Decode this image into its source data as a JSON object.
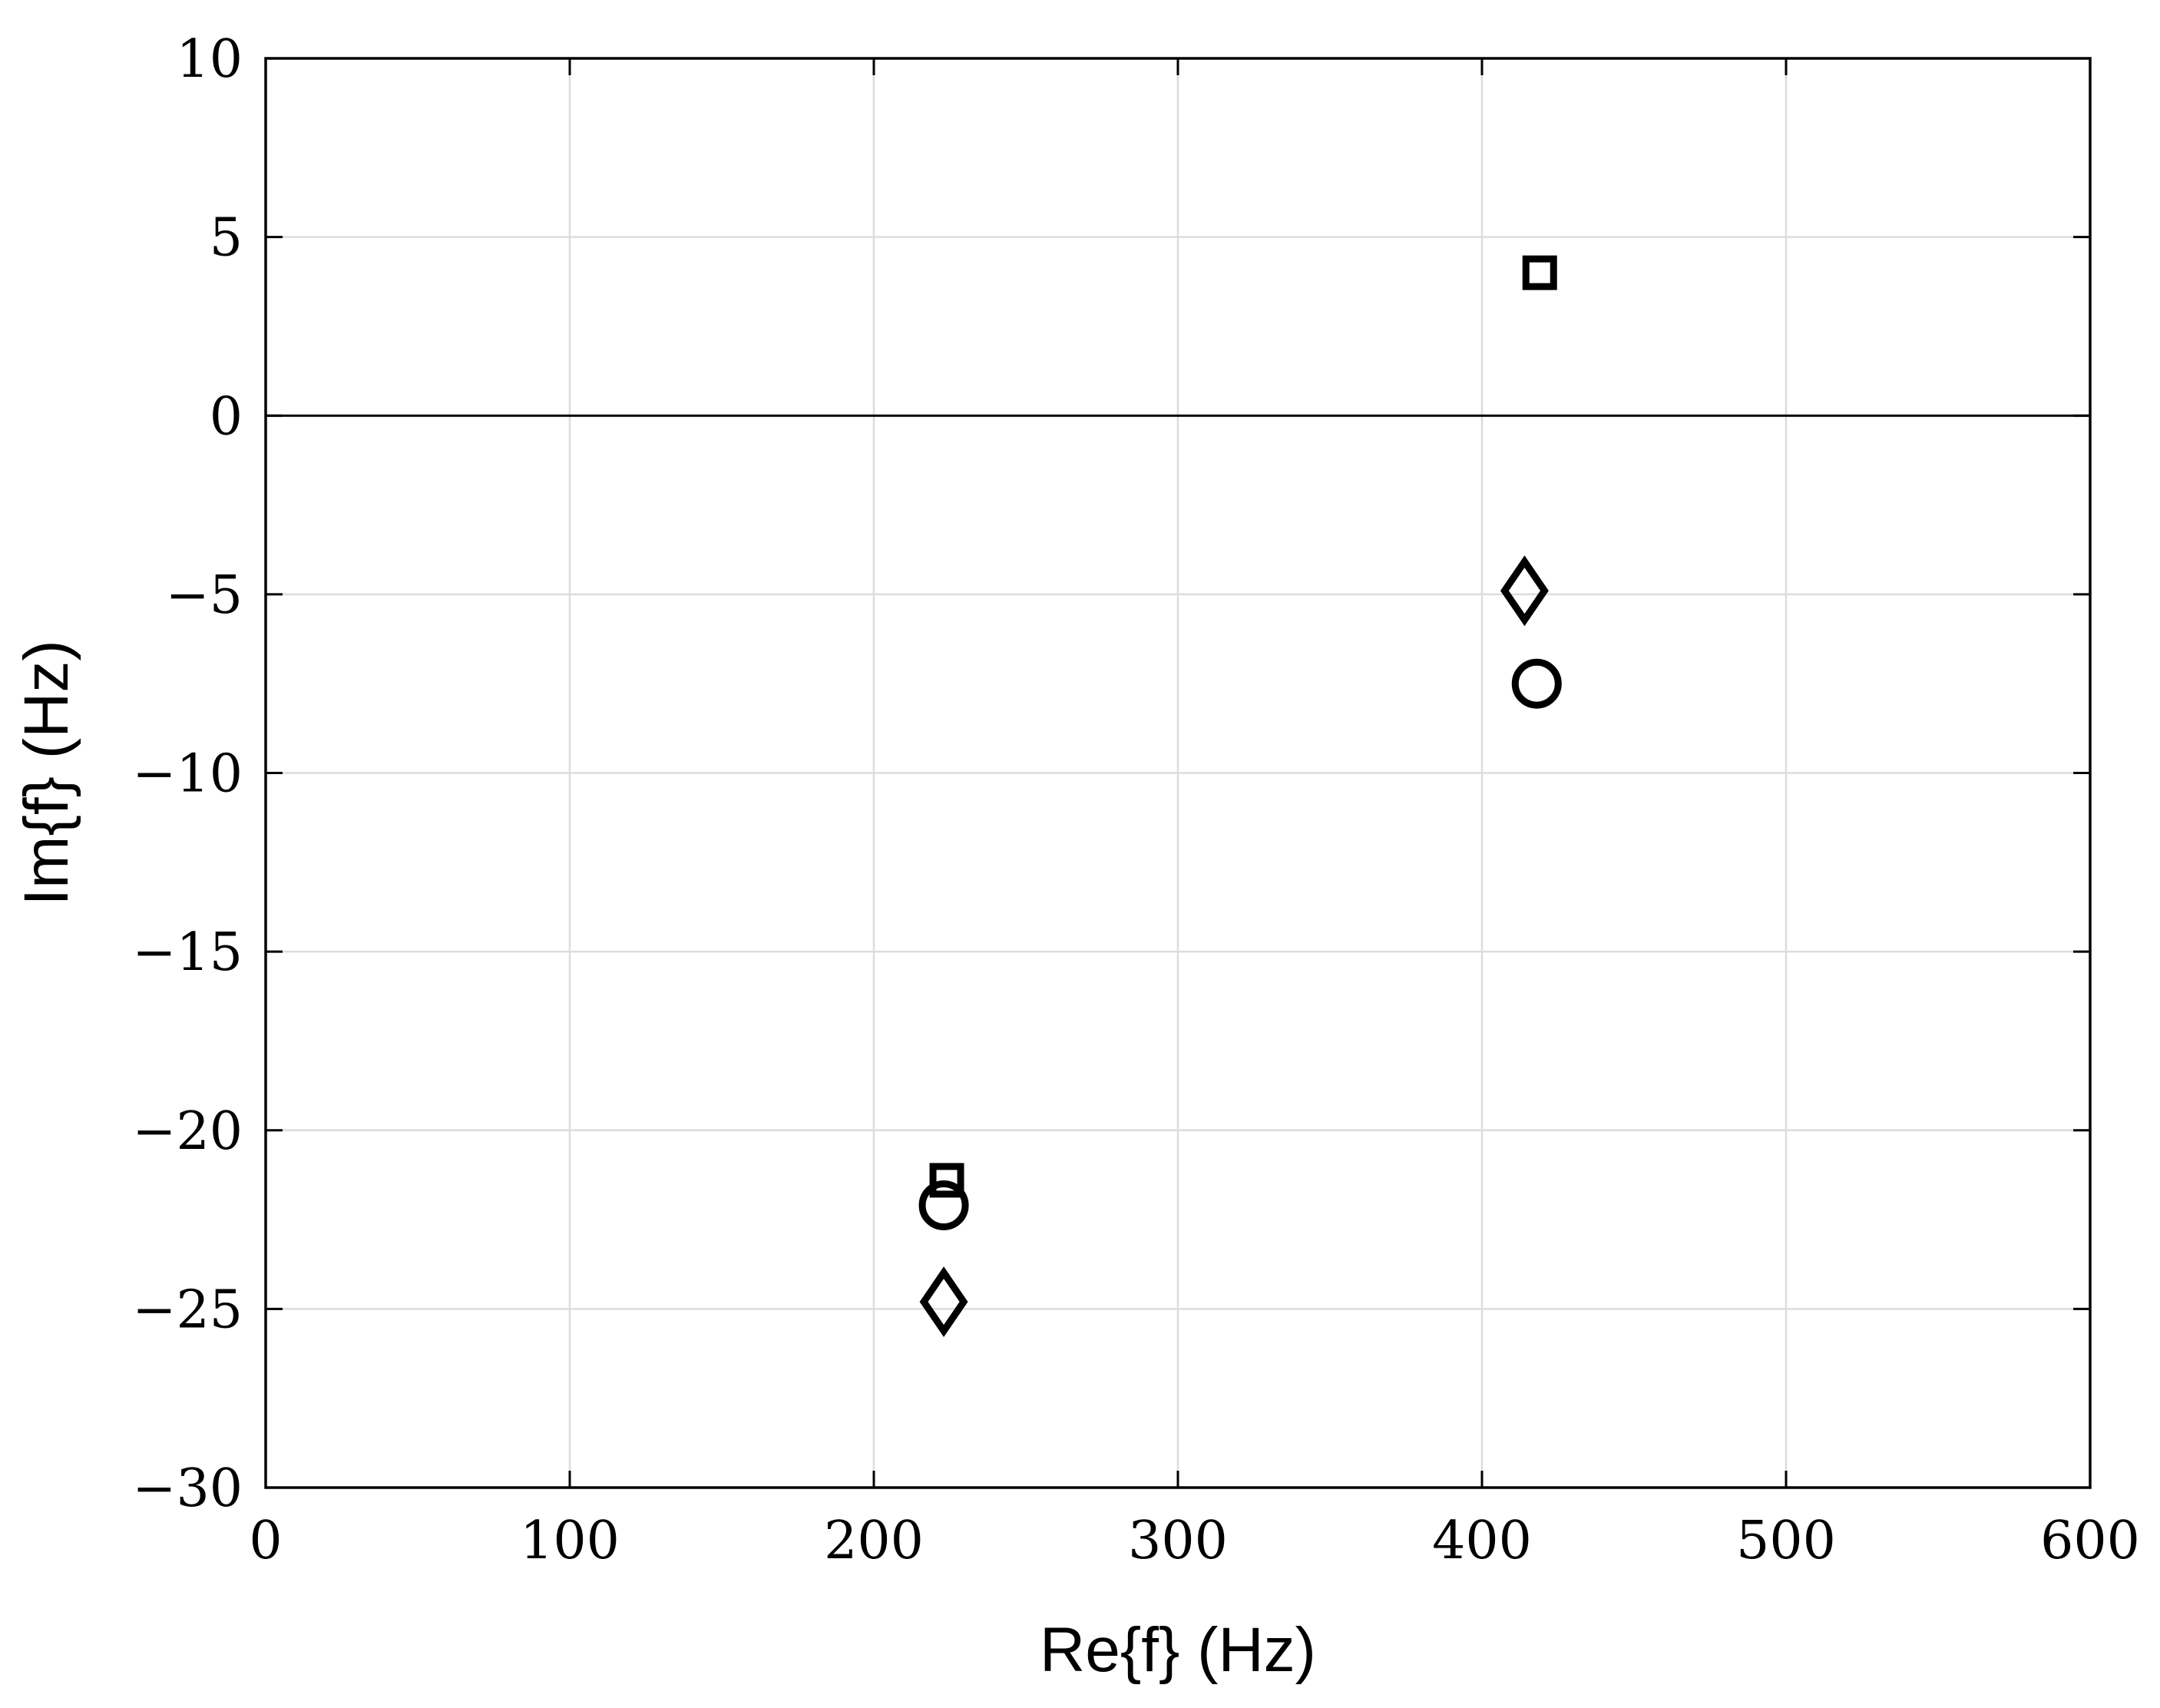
{
  "chart_data": {
    "type": "scatter",
    "title": "",
    "xlabel": "Re{f} (Hz)",
    "ylabel": "Im{f} (Hz)",
    "xlim": [
      0,
      600
    ],
    "ylim": [
      -30,
      10
    ],
    "xticks": [
      0,
      100,
      200,
      300,
      400,
      500,
      600
    ],
    "yticks": [
      10,
      5,
      0,
      -5,
      -10,
      -15,
      -20,
      -25,
      -30
    ],
    "xtick_labels": [
      "0",
      "100",
      "200",
      "300",
      "400",
      "500",
      "600"
    ],
    "ytick_labels": [
      "10",
      "5",
      "0",
      "−5",
      "−10",
      "−15",
      "−20",
      "−25",
      "−30"
    ],
    "grid": true,
    "zero_line": true,
    "legend": "none",
    "series": [
      {
        "marker": "square",
        "color": "#000000",
        "points": [
          [
            419,
            4.0
          ],
          [
            224,
            -21.4
          ]
        ]
      },
      {
        "marker": "diamond",
        "color": "#000000",
        "points": [
          [
            414,
            -4.9
          ],
          [
            223,
            -24.8
          ]
        ]
      },
      {
        "marker": "circle",
        "color": "#000000",
        "points": [
          [
            418,
            -7.5
          ],
          [
            223,
            -22.1
          ]
        ]
      }
    ]
  }
}
